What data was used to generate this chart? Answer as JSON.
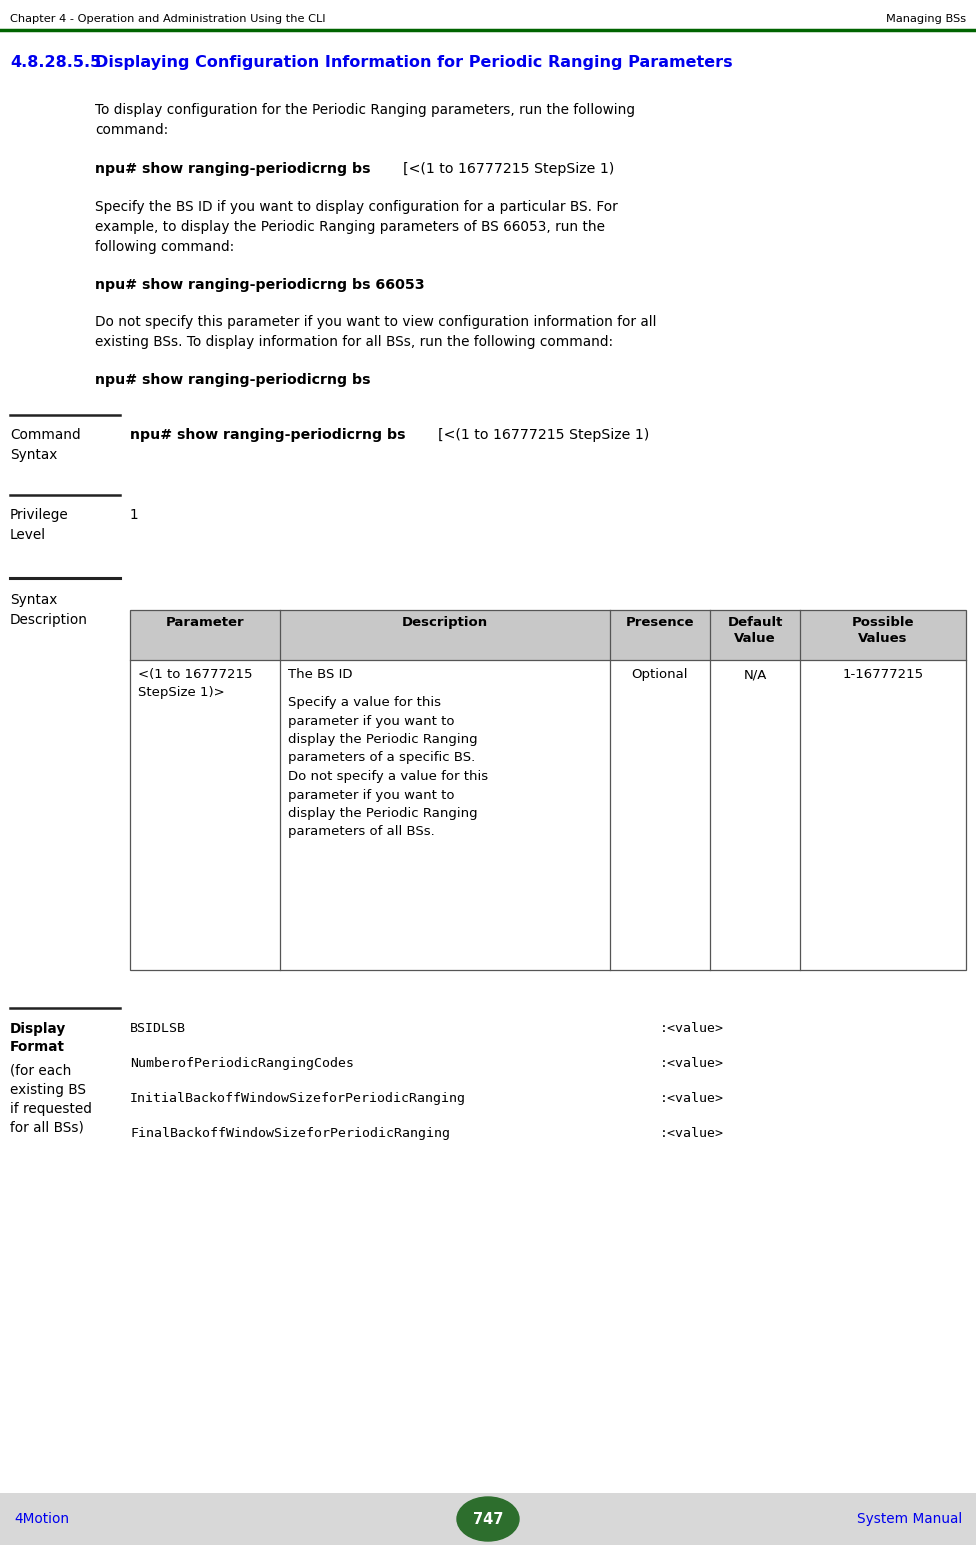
{
  "header_left": "Chapter 4 - Operation and Administration Using the CLI",
  "header_right": "Managing BSs",
  "header_line_color": "#006400",
  "section_number": "4.8.28.5.5",
  "section_title": "Displaying Configuration Information for Periodic Ranging Parameters",
  "section_color": "#0000FF",
  "body_text_1a": "To display configuration for the Periodic Ranging parameters, run the following",
  "body_text_1b": "command:",
  "cmd_syntax_bold_1": "npu# show ranging-periodicrng bs ",
  "cmd_syntax_normal_1": "[<(1 to 16777215 StepSize 1)",
  "body_text_2a": "Specify the BS ID if you want to display configuration for a particular BS. For",
  "body_text_2b": "example, to display the Periodic Ranging parameters of BS 66053, run the",
  "body_text_2c": "following command:",
  "command_2": "npu# show ranging-periodicrng bs 66053",
  "body_text_3a": "Do not specify this parameter if you want to view configuration information for all",
  "body_text_3b": "existing BSs. To display information for all BSs, run the following command:",
  "command_3": "npu# show ranging-periodicrng bs",
  "cmd_syntax_label1": "Command",
  "cmd_syntax_label2": "Syntax",
  "cmd_syntax_bold": "npu# show ranging-periodicrng bs ",
  "cmd_syntax_normal": "[<(1 to 16777215 StepSize 1)",
  "privilege_label1": "Privilege",
  "privilege_label2": "Level",
  "privilege_value": "1",
  "syntax_label1": "Syntax",
  "syntax_label2": "Description",
  "table_headers": [
    "Parameter",
    "Description",
    "Presence",
    "Default\nValue",
    "Possible\nValues"
  ],
  "table_col0": "<(1 to 16777215\nStepSize 1)>",
  "table_col1_line1": "The BS ID",
  "table_col1_rest": "Specify a value for this\nparameter if you want to\ndisplay the Periodic Ranging\nparameters of a specific BS.\nDo not specify a value for this\nparameter if you want to\ndisplay the Periodic Ranging\nparameters of all BSs.",
  "table_col2": "Optional",
  "table_col3": "N/A",
  "table_col4": "1-16777215",
  "display_label_bold1": "Display",
  "display_label_bold2": "Format",
  "display_label_normal": "(for each\nexisting BS\nif requested\nfor all BSs)",
  "display_lines": [
    [
      "BSIDLSB",
      ":<value>"
    ],
    [
      "NumberofPeriodicRangingCodes",
      ":<value>"
    ],
    [
      "InitialBackoffWindowSizeforPeriodicRanging",
      ":<value>"
    ],
    [
      "FinalBackoffWindowSizeforPeriodicRanging",
      ":<value>"
    ]
  ],
  "footer_left": "4Motion",
  "footer_right": "System Manual",
  "footer_page": "747",
  "footer_bg": "#d8d8d8",
  "footer_oval_color": "#2d6e2d",
  "bg_color": "#ffffff",
  "text_color": "#000000",
  "blue_color": "#0000EE",
  "sep_line_color": "#222222",
  "table_border_color": "#555555",
  "table_header_bg": "#c8c8c8"
}
